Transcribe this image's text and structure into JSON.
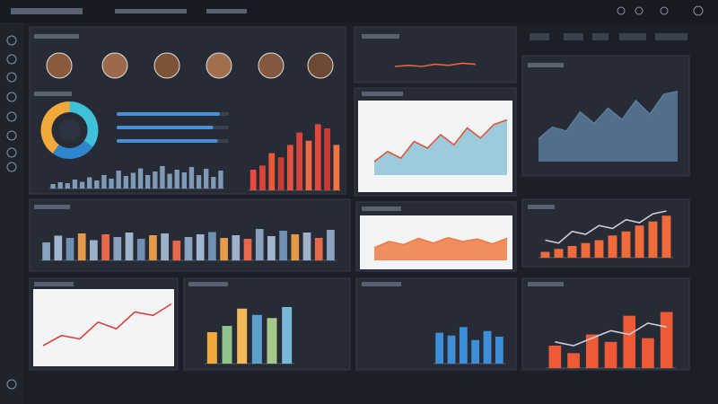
{
  "widgets": [
    {
      "type": "donut",
      "values": [
        35,
        25,
        40
      ],
      "colors": [
        "#3fc1d9",
        "#2f86cf",
        "#f2a93b"
      ]
    },
    {
      "type": "hbar",
      "values": [
        92,
        86,
        90
      ],
      "ylim": [
        0,
        100
      ],
      "color": "#4a90d9"
    },
    {
      "type": "bar",
      "values": [
        10,
        14,
        12,
        20,
        15,
        25,
        18,
        30,
        22,
        40,
        28,
        35,
        45,
        30,
        38,
        50,
        33,
        42,
        36,
        48,
        30,
        44,
        26,
        40
      ],
      "ylim": [
        0,
        60
      ],
      "color": "#7f9ab5"
    },
    {
      "type": "bar",
      "values": [
        25,
        30,
        45,
        40,
        55,
        70,
        60,
        80,
        75,
        55
      ],
      "ylim": [
        0,
        100
      ],
      "colors": [
        "#e8493f",
        "#d8443a",
        "#e85a3a",
        "#c83c36",
        "#e2533d",
        "#d9413b",
        "#ee6a42",
        "#e3473c",
        "#c93b37",
        "#f07545"
      ]
    },
    {
      "type": "line",
      "values": [
        5,
        6,
        5,
        7,
        6,
        8,
        7
      ],
      "ylim": [
        0,
        10
      ],
      "color": "#e8643a"
    },
    {
      "type": "area",
      "values": [
        30,
        45,
        40,
        65,
        50,
        70,
        55,
        80,
        62,
        88,
        92
      ],
      "ylim": [
        0,
        100
      ],
      "color": "#5a7a9a"
    },
    {
      "type": "area",
      "values": [
        20,
        35,
        25,
        50,
        40,
        60,
        45,
        70,
        55,
        75,
        82
      ],
      "ylim": [
        0,
        100
      ],
      "color": "#8cc3d6",
      "line_color": "#e0553a"
    },
    {
      "type": "bar",
      "values": [
        40,
        55,
        50,
        60,
        45,
        58,
        52,
        62,
        48,
        56,
        60,
        44,
        52,
        58,
        63,
        50,
        56,
        48,
        70,
        54,
        66,
        58,
        62,
        50,
        68
      ],
      "ylim": [
        0,
        80
      ],
      "colors": [
        "#8aa2c0",
        "#a0b6cf",
        "#6f8fb3",
        "#e59a4a",
        "#9fb1c9",
        "#e8684a"
      ]
    },
    {
      "type": "area",
      "values": [
        40,
        60,
        50,
        70,
        55,
        72,
        60,
        68,
        52,
        70
      ],
      "ylim": [
        0,
        100
      ],
      "color": "#ef7b45"
    },
    {
      "type": "bar",
      "values": [
        10,
        15,
        20,
        25,
        30,
        38,
        45,
        55,
        62,
        72
      ],
      "ylim": [
        0,
        80
      ],
      "color": "#f06a3a",
      "line_values": [
        30,
        25,
        45,
        40,
        55,
        50,
        65,
        60,
        75,
        80
      ]
    },
    {
      "type": "line",
      "values": [
        20,
        35,
        30,
        55,
        45,
        70,
        65,
        82
      ],
      "ylim": [
        0,
        100
      ],
      "color": "#d9413b"
    },
    {
      "type": "bar",
      "values": [
        40,
        48,
        70,
        62,
        58,
        72
      ],
      "ylim": [
        0,
        80
      ],
      "colors": [
        "#f2a93b",
        "#8fc48a",
        "#f2b95b",
        "#5aa0c8",
        "#a6c98a",
        "#78b8d8"
      ]
    },
    {
      "type": "bar",
      "values": [
        55,
        50,
        65,
        42,
        58,
        48
      ],
      "ylim": [
        0,
        80
      ],
      "color": "#3d8fd8"
    },
    {
      "type": "bar",
      "values": [
        30,
        20,
        45,
        35,
        70,
        40,
        75
      ],
      "ylim": [
        0,
        90
      ],
      "color": "#ee5a36",
      "line_values": [
        35,
        30,
        40,
        50,
        45,
        60,
        55
      ]
    }
  ]
}
